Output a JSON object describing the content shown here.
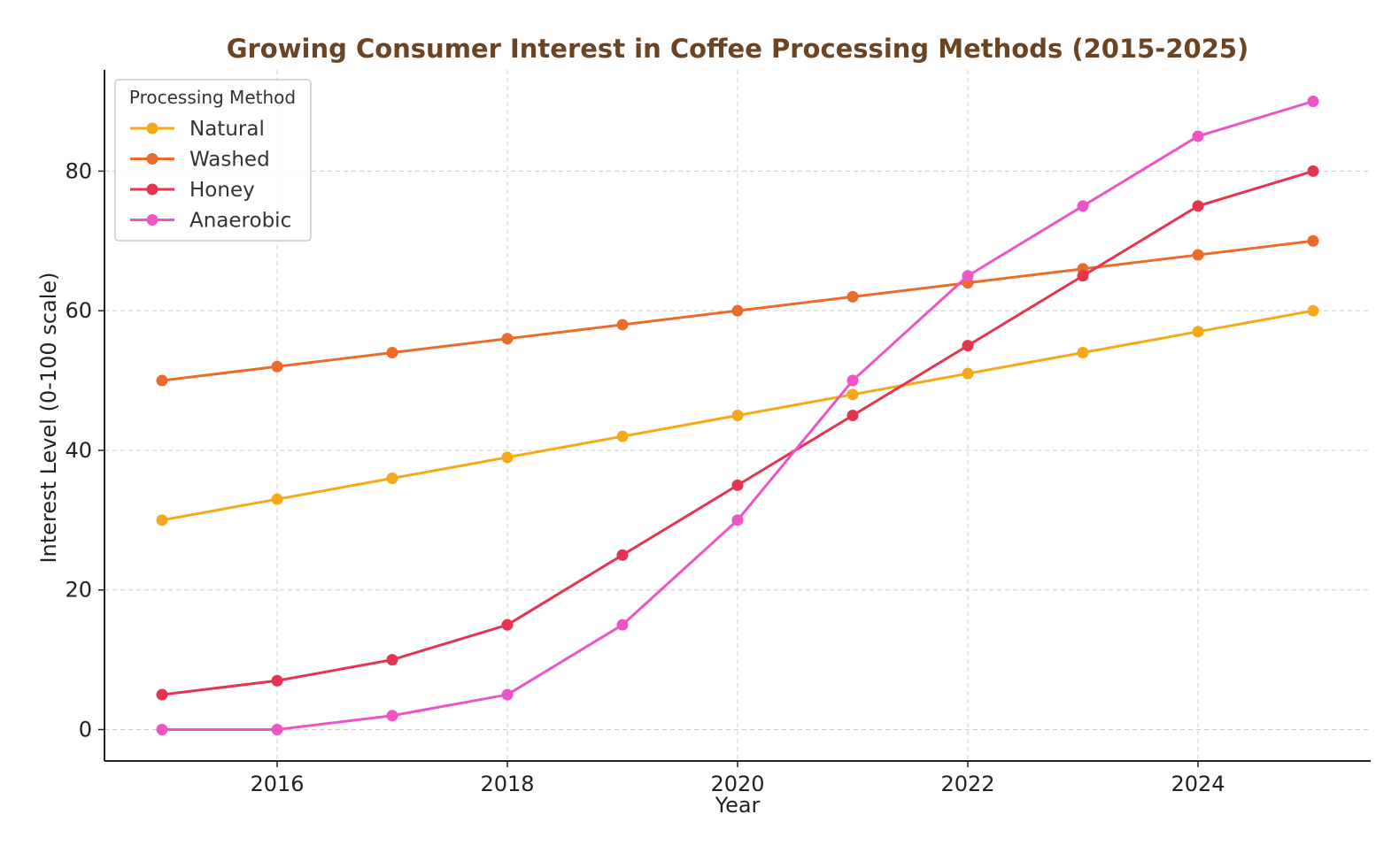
{
  "chart_data": {
    "type": "line",
    "title": "Growing Consumer Interest in Coffee Processing Methods (2015-2025)",
    "xlabel": "Year",
    "ylabel": "Interest Level (0-100 scale)",
    "x": [
      2015,
      2016,
      2017,
      2018,
      2019,
      2020,
      2021,
      2022,
      2023,
      2024,
      2025
    ],
    "xlim": [
      2014.5,
      2025.5
    ],
    "ylim": [
      -4.5,
      94.5
    ],
    "x_ticks": [
      2016,
      2018,
      2020,
      2022,
      2024
    ],
    "x_tick_labels": [
      "2016",
      "2018",
      "2020",
      "2022",
      "2024"
    ],
    "y_ticks": [
      0,
      20,
      40,
      60,
      80
    ],
    "y_tick_labels": [
      "0",
      "20",
      "40",
      "60",
      "80"
    ],
    "grid": true,
    "legend": {
      "title": "Processing Method",
      "placement": "top-left"
    },
    "series": [
      {
        "name": "Natural",
        "color": "#f5a818",
        "values": [
          30,
          33,
          36,
          39,
          42,
          45,
          48,
          51,
          54,
          57,
          60
        ]
      },
      {
        "name": "Washed",
        "color": "#ea6b2c",
        "values": [
          50,
          52,
          54,
          56,
          58,
          60,
          62,
          64,
          66,
          68,
          70
        ]
      },
      {
        "name": "Honey",
        "color": "#e5344f",
        "values": [
          5,
          7,
          10,
          15,
          25,
          35,
          45,
          55,
          65,
          75,
          80
        ]
      },
      {
        "name": "Anaerobic",
        "color": "#ee55c4",
        "values": [
          0,
          0,
          2,
          5,
          15,
          30,
          50,
          65,
          75,
          85,
          90
        ]
      }
    ]
  }
}
